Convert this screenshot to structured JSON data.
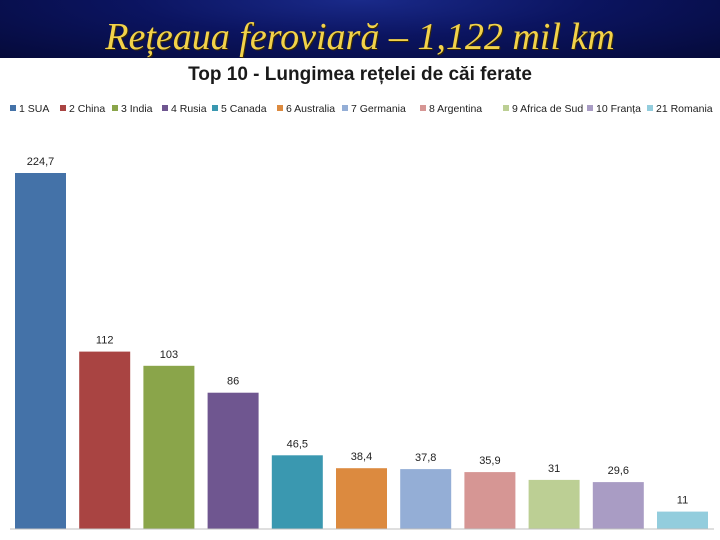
{
  "slide": {
    "title": "Rețeaua feroviară – 1,122 mil km"
  },
  "chart_data": {
    "type": "bar",
    "title": "Top 10 - Lungimea rețelei de căi ferate",
    "xlabel": "",
    "ylabel": "",
    "ylim": [
      0,
      230
    ],
    "grid": false,
    "legend_position": "top",
    "series": [
      {
        "name": "1 SUA",
        "value": 224.7,
        "label": "224,7",
        "color": "#4472a8"
      },
      {
        "name": "2 China",
        "value": 112,
        "label": "112",
        "color": "#a94442"
      },
      {
        "name": "3 India",
        "value": 103,
        "label": "103",
        "color": "#8aa54a"
      },
      {
        "name": "4 Rusia",
        "value": 86,
        "label": "86",
        "color": "#6f5690"
      },
      {
        "name": "5 Canada",
        "value": 46.5,
        "label": "46,5",
        "color": "#3a98b0"
      },
      {
        "name": "6 Australia",
        "value": 38.4,
        "label": "38,4",
        "color": "#dc8a3f"
      },
      {
        "name": "7 Germania",
        "value": 37.8,
        "label": "37,8",
        "color": "#94aed6"
      },
      {
        "name": "8 Argentina",
        "value": 35.9,
        "label": "35,9",
        "color": "#d69694"
      },
      {
        "name": "9 Africa de Sud",
        "value": 31,
        "label": "31",
        "color": "#bccf94"
      },
      {
        "name": "10 Franța",
        "value": 29.6,
        "label": "29,6",
        "color": "#a99cc4"
      },
      {
        "name": "21 Romania",
        "value": 11,
        "label": "11",
        "color": "#93cddd"
      }
    ]
  }
}
